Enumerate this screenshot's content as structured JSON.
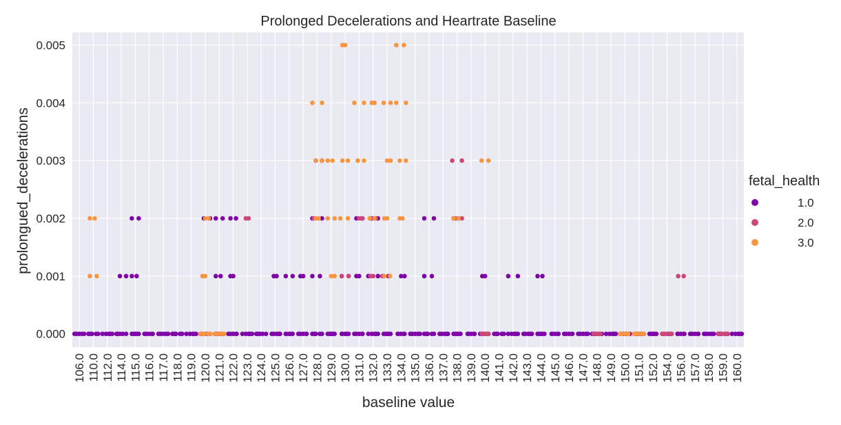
{
  "chart_data": {
    "type": "scatter",
    "plot_kind": "strip",
    "title": "Prolonged Decelerations and Heartrate Baseline",
    "xlabel": "baseline value",
    "ylabel": "prolongued_decelerations",
    "categories": [
      "106.0",
      "110.0",
      "112.0",
      "114.0",
      "115.0",
      "116.0",
      "117.0",
      "118.0",
      "119.0",
      "120.0",
      "121.0",
      "122.0",
      "123.0",
      "124.0",
      "125.0",
      "126.0",
      "127.0",
      "128.0",
      "129.0",
      "130.0",
      "131.0",
      "132.0",
      "133.0",
      "134.0",
      "135.0",
      "136.0",
      "137.0",
      "138.0",
      "139.0",
      "140.0",
      "141.0",
      "142.0",
      "143.0",
      "144.0",
      "145.0",
      "146.0",
      "147.0",
      "148.0",
      "149.0",
      "150.0",
      "151.0",
      "152.0",
      "154.0",
      "156.0",
      "157.0",
      "158.0",
      "159.0",
      "160.0"
    ],
    "y_ticks": [
      0.0,
      0.001,
      0.002,
      0.003,
      0.004,
      0.005
    ],
    "y_tick_labels": [
      "0.000",
      "0.001",
      "0.002",
      "0.003",
      "0.004",
      "0.005"
    ],
    "ylim": [
      -0.00023,
      0.00522
    ],
    "grid": true,
    "legend": {
      "title": "fetal_health",
      "placement": "right",
      "entries": [
        {
          "label": "1.0",
          "color": "#7e03a8"
        },
        {
          "label": "2.0",
          "color": "#cc4778"
        },
        {
          "label": "3.0",
          "color": "#f89540"
        }
      ]
    },
    "series": [
      {
        "name": "1.0",
        "color": "#7e03a8",
        "points": [
          [
            "106.0",
            0
          ],
          [
            "110.0",
            0
          ],
          [
            "112.0",
            0
          ],
          [
            "114.0",
            0
          ],
          [
            "114.0",
            0.001
          ],
          [
            "115.0",
            0
          ],
          [
            "115.0",
            0.001
          ],
          [
            "115.0",
            0.002
          ],
          [
            "116.0",
            0
          ],
          [
            "117.0",
            0
          ],
          [
            "118.0",
            0
          ],
          [
            "119.0",
            0
          ],
          [
            "120.0",
            0
          ],
          [
            "120.0",
            0.002
          ],
          [
            "121.0",
            0
          ],
          [
            "121.0",
            0.001
          ],
          [
            "121.0",
            0.002
          ],
          [
            "122.0",
            0
          ],
          [
            "122.0",
            0.001
          ],
          [
            "122.0",
            0.002
          ],
          [
            "123.0",
            0
          ],
          [
            "124.0",
            0
          ],
          [
            "125.0",
            0
          ],
          [
            "125.0",
            0.001
          ],
          [
            "126.0",
            0
          ],
          [
            "126.0",
            0.001
          ],
          [
            "127.0",
            0
          ],
          [
            "127.0",
            0.001
          ],
          [
            "128.0",
            0
          ],
          [
            "128.0",
            0.001
          ],
          [
            "128.0",
            0.002
          ],
          [
            "128.0",
            0.003
          ],
          [
            "129.0",
            0
          ],
          [
            "130.0",
            0
          ],
          [
            "130.0",
            0.001
          ],
          [
            "131.0",
            0
          ],
          [
            "131.0",
            0.001
          ],
          [
            "131.0",
            0.002
          ],
          [
            "132.0",
            0
          ],
          [
            "132.0",
            0.001
          ],
          [
            "132.0",
            0.002
          ],
          [
            "133.0",
            0
          ],
          [
            "133.0",
            0.001
          ],
          [
            "134.0",
            0
          ],
          [
            "134.0",
            0.001
          ],
          [
            "135.0",
            0
          ],
          [
            "136.0",
            0
          ],
          [
            "136.0",
            0.001
          ],
          [
            "136.0",
            0.002
          ],
          [
            "137.0",
            0
          ],
          [
            "138.0",
            0
          ],
          [
            "138.0",
            0.002
          ],
          [
            "139.0",
            0
          ],
          [
            "140.0",
            0
          ],
          [
            "140.0",
            0.001
          ],
          [
            "141.0",
            0
          ],
          [
            "142.0",
            0
          ],
          [
            "142.0",
            0.001
          ],
          [
            "143.0",
            0
          ],
          [
            "144.0",
            0
          ],
          [
            "144.0",
            0.001
          ],
          [
            "145.0",
            0
          ],
          [
            "146.0",
            0
          ],
          [
            "147.0",
            0
          ],
          [
            "148.0",
            0
          ],
          [
            "149.0",
            0
          ],
          [
            "150.0",
            0
          ],
          [
            "151.0",
            0
          ],
          [
            "152.0",
            0
          ],
          [
            "154.0",
            0
          ],
          [
            "156.0",
            0
          ],
          [
            "157.0",
            0
          ],
          [
            "158.0",
            0
          ],
          [
            "159.0",
            0
          ],
          [
            "160.0",
            0
          ]
        ]
      },
      {
        "name": "2.0",
        "color": "#cc4778",
        "points": [
          [
            "120.0",
            0
          ],
          [
            "121.0",
            0
          ],
          [
            "123.0",
            0.002
          ],
          [
            "128.0",
            0.002
          ],
          [
            "130.0",
            0.001
          ],
          [
            "131.0",
            0.002
          ],
          [
            "132.0",
            0.001
          ],
          [
            "132.0",
            0.002
          ],
          [
            "133.0",
            0.001
          ],
          [
            "138.0",
            0.003
          ],
          [
            "138.0",
            0.002
          ],
          [
            "140.0",
            0
          ],
          [
            "148.0",
            0
          ],
          [
            "150.0",
            0
          ],
          [
            "151.0",
            0
          ],
          [
            "154.0",
            0
          ],
          [
            "156.0",
            0.001
          ],
          [
            "159.0",
            0
          ]
        ]
      },
      {
        "name": "3.0",
        "color": "#f89540",
        "points": [
          [
            "110.0",
            0.002
          ],
          [
            "110.0",
            0.001
          ],
          [
            "120.0",
            0.002
          ],
          [
            "120.0",
            0.001
          ],
          [
            "120.0",
            0
          ],
          [
            "121.0",
            0
          ],
          [
            "128.0",
            0.004
          ],
          [
            "128.0",
            0.003
          ],
          [
            "128.0",
            0.002
          ],
          [
            "129.0",
            0.003
          ],
          [
            "129.0",
            0.002
          ],
          [
            "129.0",
            0.001
          ],
          [
            "130.0",
            0.005
          ],
          [
            "130.0",
            0.003
          ],
          [
            "130.0",
            0.002
          ],
          [
            "131.0",
            0.004
          ],
          [
            "131.0",
            0.003
          ],
          [
            "132.0",
            0.004
          ],
          [
            "132.0",
            0.002
          ],
          [
            "133.0",
            0.004
          ],
          [
            "133.0",
            0.003
          ],
          [
            "133.0",
            0.002
          ],
          [
            "133.0",
            0.001
          ],
          [
            "134.0",
            0.005
          ],
          [
            "134.0",
            0.004
          ],
          [
            "134.0",
            0.003
          ],
          [
            "134.0",
            0.002
          ],
          [
            "138.0",
            0.002
          ],
          [
            "140.0",
            0.003
          ],
          [
            "150.0",
            0
          ],
          [
            "151.0",
            0
          ]
        ]
      }
    ]
  }
}
